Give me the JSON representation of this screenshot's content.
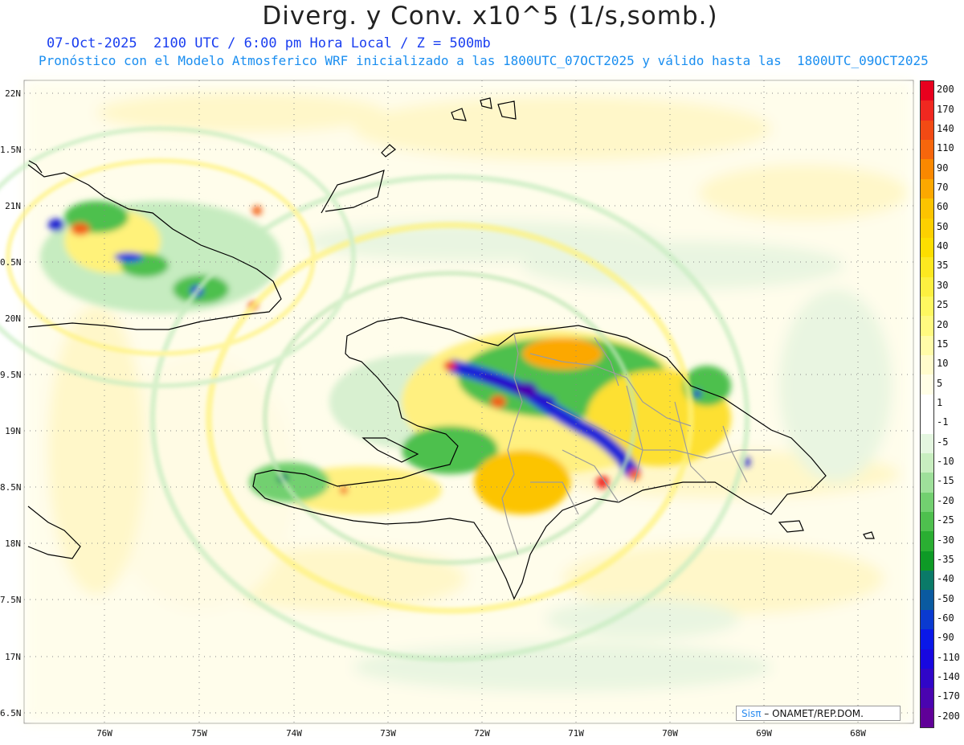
{
  "header": {
    "title": "Diverg. y Conv. x10^5 (1/s,somb.)",
    "datetime_line": "07-Oct-2025  2100 UTC / 6:00 pm Hora Local / Z = 500mb",
    "forecast_line": "Pronóstico con el Modelo Atmosferico WRF inicializado a las 1800UTC_07OCT2025 y válido hasta las  1800UTC_09OCT2025"
  },
  "map": {
    "lat_labels": [
      "22N",
      "1.5N",
      "21N",
      "0.5N",
      "20N",
      "9.5N",
      "19N",
      "8.5N",
      "18N",
      "7.5N",
      "17N",
      "6.5N"
    ],
    "lon_labels": [
      "76W",
      "75W",
      "74W",
      "73W",
      "72W",
      "71W",
      "70W",
      "69W",
      "68W"
    ],
    "grid": "dotted",
    "country_borders_color": "#999999",
    "coastline_color": "#000000"
  },
  "colorbar": {
    "labels": [
      "200",
      "170",
      "140",
      "110",
      "90",
      "70",
      "60",
      "50",
      "40",
      "35",
      "30",
      "25",
      "20",
      "15",
      "10",
      "5",
      "1",
      "-1",
      "-5",
      "-10",
      "-15",
      "-20",
      "-25",
      "-30",
      "-35",
      "-40",
      "-50",
      "-60",
      "-90",
      "-110",
      "-140",
      "-170",
      "-200"
    ],
    "colors": [
      "#e8001e",
      "#f02820",
      "#f24a14",
      "#f6660c",
      "#fa8800",
      "#fca800",
      "#fcc400",
      "#fdd000",
      "#fdde00",
      "#fde820",
      "#fdf040",
      "#fef860",
      "#fffa80",
      "#fffca8",
      "#fffccc",
      "#fffee6",
      "#ffffff",
      "#ffffff",
      "#e4f6e0",
      "#c8eec0",
      "#9ee09a",
      "#72d070",
      "#4ec04e",
      "#2aae32",
      "#0e9a26",
      "#0a7a68",
      "#0a5aa0",
      "#0a3ad0",
      "#0a18e8",
      "#1808e0",
      "#3006c8",
      "#4a04b0",
      "#600098"
    ]
  },
  "credit": {
    "sis": "Sisπ",
    "rest": "– ONAMET/REP.DOM."
  }
}
